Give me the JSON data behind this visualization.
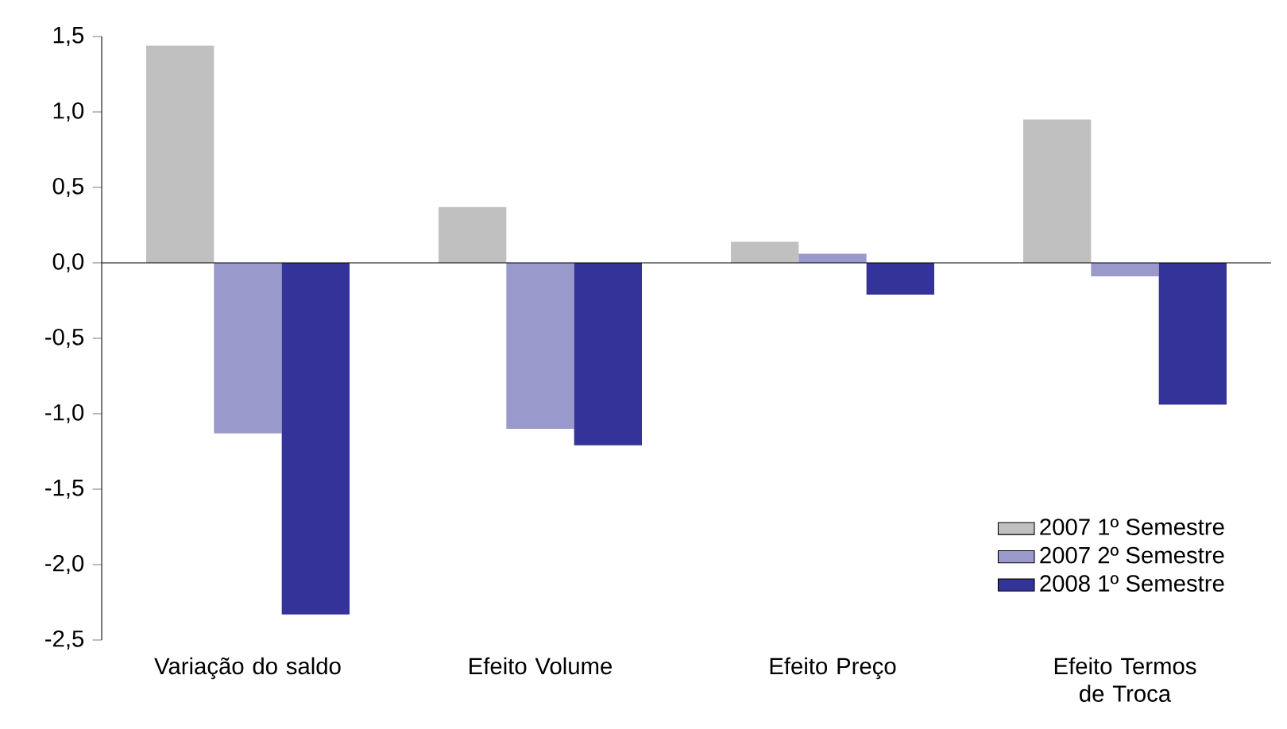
{
  "chart_data": {
    "type": "bar",
    "categories": [
      "Variação do saldo",
      "Efeito Volume",
      "Efeito Preço",
      "Efeito Termos de Troca"
    ],
    "series": [
      {
        "name": "2007 1º Semestre",
        "color": "#c0c0c0",
        "values": [
          1.44,
          0.37,
          0.14,
          0.95
        ]
      },
      {
        "name": "2007 2º Semestre",
        "color": "#9999cc",
        "values": [
          -1.13,
          -1.1,
          0.06,
          -0.09
        ]
      },
      {
        "name": "2008 1º Semestre",
        "color": "#333399",
        "values": [
          -2.33,
          -1.21,
          -0.21,
          -0.94
        ]
      }
    ],
    "ylim": [
      -2.5,
      1.5
    ],
    "yticks": [
      {
        "value": -2.5,
        "label": "-2,5"
      },
      {
        "value": -2.0,
        "label": "-2,0"
      },
      {
        "value": -1.5,
        "label": "-1,5"
      },
      {
        "value": -1.0,
        "label": "-1,0"
      },
      {
        "value": -0.5,
        "label": "-0,5"
      },
      {
        "value": 0.0,
        "label": "0,0"
      },
      {
        "value": 0.5,
        "label": "0,5"
      },
      {
        "value": 1.0,
        "label": "1,0"
      },
      {
        "value": 1.5,
        "label": "1,5"
      }
    ],
    "legend": "bottom right"
  }
}
